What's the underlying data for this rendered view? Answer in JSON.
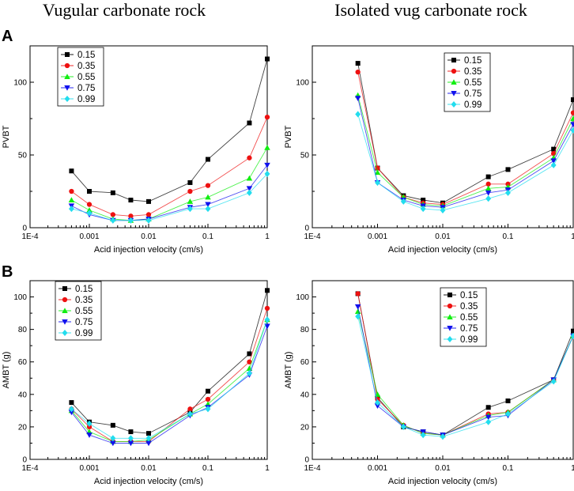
{
  "column_titles": [
    "Vugular carbonate rock",
    "Isolated vug carbonate rock"
  ],
  "row_labels": [
    "A",
    "B"
  ],
  "chart_data": [
    {
      "type": "line",
      "row": "A",
      "column": "Vugular carbonate rock",
      "xscale": "log",
      "xlim": [
        0.0001,
        1
      ],
      "ylim": [
        0,
        125
      ],
      "xticks": [
        "1E-4",
        "0.001",
        "0.01",
        "0.1",
        "1"
      ],
      "yticks": [
        0,
        50,
        100
      ],
      "xlabel": "Acid injection velocity (cm/s)",
      "ylabel": "PVBT",
      "x": [
        0.0005,
        0.001,
        0.0025,
        0.005,
        0.01,
        0.05,
        0.1,
        0.5,
        1
      ],
      "series": [
        {
          "name": "0.15",
          "color": "#000000",
          "marker": "square",
          "values": [
            39,
            25,
            24,
            19,
            18,
            31,
            47,
            72,
            116
          ]
        },
        {
          "name": "0.35",
          "color": "#ee1111",
          "marker": "circle",
          "values": [
            25,
            16,
            9,
            8,
            9,
            25,
            29,
            48,
            76
          ]
        },
        {
          "name": "0.55",
          "color": "#11ee11",
          "marker": "triangle-up",
          "values": [
            19,
            12,
            6,
            5,
            6,
            18,
            21,
            34,
            55
          ]
        },
        {
          "name": "0.75",
          "color": "#1111ee",
          "marker": "triangle-down",
          "values": [
            15,
            9,
            5,
            5,
            6,
            14,
            16,
            27,
            43
          ]
        },
        {
          "name": "0.99",
          "color": "#22ddee",
          "marker": "diamond",
          "values": [
            13,
            10,
            5,
            5,
            5,
            13,
            13,
            24,
            37
          ]
        }
      ]
    },
    {
      "type": "line",
      "row": "A",
      "column": "Isolated vug carbonate rock",
      "xscale": "log",
      "xlim": [
        0.0001,
        1
      ],
      "ylim": [
        0,
        125
      ],
      "xticks": [
        "1E-4",
        "0.001",
        "0.01",
        "0.1",
        "1"
      ],
      "yticks": [
        0,
        50,
        100
      ],
      "xlabel": "Acid injection velocity (cm/s)",
      "ylabel": "PVBT",
      "x": [
        0.0005,
        0.001,
        0.0025,
        0.005,
        0.01,
        0.05,
        0.1,
        0.5,
        1
      ],
      "series": [
        {
          "name": "0.15",
          "color": "#000000",
          "marker": "square",
          "values": [
            113,
            41,
            22,
            19,
            17,
            35,
            40,
            54,
            88
          ]
        },
        {
          "name": "0.35",
          "color": "#ee1111",
          "marker": "circle",
          "values": [
            107,
            41,
            21,
            17,
            16,
            30,
            30,
            51,
            79
          ]
        },
        {
          "name": "0.55",
          "color": "#11ee11",
          "marker": "triangle-up",
          "values": [
            91,
            38,
            21,
            16,
            15,
            27,
            28,
            48,
            75
          ]
        },
        {
          "name": "0.75",
          "color": "#1111ee",
          "marker": "triangle-down",
          "values": [
            89,
            31,
            19,
            15,
            14,
            24,
            26,
            46,
            71
          ]
        },
        {
          "name": "0.99",
          "color": "#22ddee",
          "marker": "diamond",
          "values": [
            78,
            31,
            18,
            13,
            12,
            20,
            24,
            43,
            67
          ]
        }
      ]
    },
    {
      "type": "line",
      "row": "B",
      "column": "Vugular carbonate rock",
      "xscale": "log",
      "xlim": [
        0.0001,
        1
      ],
      "ylim": [
        0,
        110
      ],
      "xticks": [
        "1E-4",
        "0.001",
        "0.01",
        "0.1",
        "1"
      ],
      "yticks": [
        0,
        20,
        40,
        60,
        80,
        100
      ],
      "xlabel": "Acid injection velocity (cm/s)",
      "ylabel": "AMBT (g)",
      "x": [
        0.0005,
        0.001,
        0.0025,
        0.005,
        0.01,
        0.05,
        0.1,
        0.5,
        1
      ],
      "series": [
        {
          "name": "0.15",
          "color": "#000000",
          "marker": "square",
          "values": [
            35,
            23,
            21,
            17,
            16,
            29,
            42,
            65,
            104
          ]
        },
        {
          "name": "0.35",
          "color": "#ee1111",
          "marker": "circle",
          "values": [
            31,
            20,
            11,
            11,
            11,
            31,
            37,
            60,
            93
          ]
        },
        {
          "name": "0.55",
          "color": "#11ee11",
          "marker": "triangle-up",
          "values": [
            30,
            17,
            11,
            11,
            12,
            28,
            34,
            56,
            86
          ]
        },
        {
          "name": "0.75",
          "color": "#1111ee",
          "marker": "triangle-down",
          "values": [
            29,
            15,
            10,
            10,
            10,
            27,
            32,
            52,
            82
          ]
        },
        {
          "name": "0.99",
          "color": "#22ddee",
          "marker": "diamond",
          "values": [
            31,
            22,
            13,
            13,
            13,
            28,
            31,
            53,
            86
          ]
        }
      ]
    },
    {
      "type": "line",
      "row": "B",
      "column": "Isolated vug carbonate rock",
      "xscale": "log",
      "xlim": [
        0.0001,
        1
      ],
      "ylim": [
        0,
        110
      ],
      "xticks": [
        "1E-4",
        "0.001",
        "0.01",
        "0.1",
        "1"
      ],
      "yticks": [
        0,
        20,
        40,
        60,
        80,
        100
      ],
      "xlabel": "Acid injection velocity (cm/s)",
      "ylabel": "AMBT (g)",
      "x": [
        0.0005,
        0.001,
        0.0025,
        0.005,
        0.01,
        0.05,
        0.1,
        0.5,
        1
      ],
      "series": [
        {
          "name": "0.15",
          "color": "#000000",
          "marker": "square",
          "values": [
            102,
            38,
            20,
            17,
            15,
            32,
            36,
            49,
            79
          ]
        },
        {
          "name": "0.35",
          "color": "#ee1111",
          "marker": "circle",
          "values": [
            102,
            37,
            21,
            16,
            15,
            28,
            29,
            49,
            76
          ]
        },
        {
          "name": "0.55",
          "color": "#11ee11",
          "marker": "triangle-up",
          "values": [
            91,
            40,
            21,
            16,
            15,
            27,
            29,
            49,
            76
          ]
        },
        {
          "name": "0.75",
          "color": "#1111ee",
          "marker": "triangle-down",
          "values": [
            94,
            33,
            20,
            17,
            15,
            26,
            27,
            49,
            76
          ]
        },
        {
          "name": "0.99",
          "color": "#22ddee",
          "marker": "diamond",
          "values": [
            88,
            35,
            20,
            15,
            14,
            23,
            28,
            48,
            76
          ]
        }
      ]
    }
  ]
}
